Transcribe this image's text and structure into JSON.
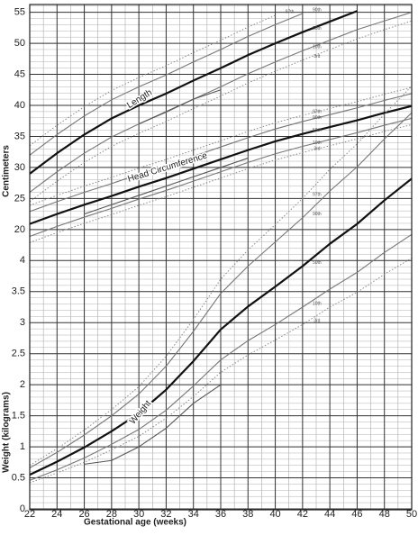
{
  "chart_data": {
    "type": "line",
    "xlabel": "Gestational age (weeks)",
    "ylabel": "Weight (kilograms)",
    "y2label": "Centimeters",
    "annotations": [
      "Length",
      "Head Circumference",
      "Weight"
    ],
    "x": [
      22,
      24,
      26,
      28,
      30,
      32,
      34,
      36,
      38,
      40,
      42,
      44,
      46,
      48,
      50
    ],
    "xlim": [
      22,
      50
    ],
    "xticks": [
      22,
      24,
      26,
      28,
      30,
      32,
      34,
      36,
      38,
      40,
      42,
      44,
      46,
      48,
      50
    ],
    "ylim": [
      0,
      8.125
    ],
    "yticks": [
      0,
      0.5,
      1,
      1.5,
      2,
      2.5,
      3,
      3.5,
      4
    ],
    "y2lim": [
      -25,
      56.25
    ],
    "y2ticks": [
      20,
      25,
      30,
      35,
      40,
      45,
      50,
      55
    ],
    "grid": true,
    "minor_grid": true,
    "series": [
      {
        "name": "97th",
        "axis": "y2",
        "color": "#8a8a8a",
        "style": "dotted",
        "values": [
          33.5,
          36.8,
          39.8,
          42.4,
          44.5,
          46.4,
          48.5,
          50.5,
          52.6,
          54.5,
          null,
          null,
          null,
          null,
          null
        ]
      },
      {
        "name": "90th",
        "axis": "y2",
        "color": "#777777",
        "style": "solid",
        "values": [
          32,
          35.3,
          38.3,
          40.9,
          43.0,
          44.9,
          47.0,
          49.0,
          51.1,
          53.0,
          54.8,
          null,
          null,
          null,
          null
        ]
      },
      {
        "name": "50th",
        "axis": "y2",
        "color": "#111111",
        "style": "bold",
        "values": [
          29,
          32.3,
          35.3,
          37.9,
          40.0,
          41.9,
          44.0,
          46.0,
          48.1,
          50.0,
          51.8,
          53.5,
          55.2,
          null,
          null
        ]
      },
      {
        "name": "10th",
        "axis": "y2",
        "color": "#777777",
        "style": "solid",
        "values": [
          26,
          29.3,
          32.3,
          34.9,
          37.0,
          38.9,
          41.0,
          43.0,
          45.1,
          47.0,
          48.8,
          50.5,
          52.2,
          53.6,
          55.0
        ]
      },
      {
        "name": "3rd",
        "axis": "y2",
        "color": "#8a8a8a",
        "style": "dotted",
        "values": [
          24.5,
          27.8,
          30.8,
          33.4,
          35.5,
          37.4,
          39.5,
          41.5,
          43.6,
          45.5,
          47.3,
          49.0,
          50.7,
          52.2,
          53.6
        ]
      },
      {
        "name": "97th",
        "axis": "y2",
        "color": "#8a8a8a",
        "style": "dotted",
        "values": [
          23.9,
          25.5,
          27.0,
          28.4,
          29.9,
          31.3,
          32.8,
          34.3,
          35.8,
          37.2,
          38.4,
          39.5,
          40.6,
          41.8,
          42.9
        ]
      },
      {
        "name": "90th",
        "axis": "y2",
        "color": "#777777",
        "style": "solid",
        "values": [
          22.9,
          24.5,
          26.0,
          27.4,
          28.9,
          30.3,
          31.8,
          33.3,
          34.8,
          36.2,
          37.4,
          38.5,
          39.6,
          40.8,
          41.9
        ]
      },
      {
        "name": "50th",
        "axis": "y2",
        "color": "#111111",
        "style": "bold",
        "values": [
          20.9,
          22.5,
          24.0,
          25.4,
          26.9,
          28.3,
          29.8,
          31.3,
          32.8,
          34.2,
          35.4,
          36.5,
          37.6,
          38.8,
          39.9
        ]
      },
      {
        "name": "10th",
        "axis": "y2",
        "color": "#777777",
        "style": "solid",
        "values": [
          18.9,
          20.5,
          22.0,
          23.4,
          24.9,
          26.3,
          27.8,
          29.3,
          30.8,
          32.2,
          33.4,
          34.5,
          35.6,
          36.8,
          37.9
        ]
      },
      {
        "name": "3rd",
        "axis": "y2",
        "color": "#8a8a8a",
        "style": "dotted",
        "values": [
          17.9,
          19.5,
          21.0,
          22.4,
          23.9,
          25.3,
          26.8,
          28.3,
          29.8,
          31.2,
          32.4,
          33.5,
          34.6,
          35.8,
          36.9
        ]
      },
      {
        "name": "97th",
        "color": "#8a8a8a",
        "style": "dotted",
        "values": [
          0.7,
          0.97,
          1.27,
          1.6,
          1.97,
          2.46,
          3.05,
          3.7,
          4.17,
          4.58,
          5.0,
          5.47,
          5.88,
          6.36,
          6.81
        ]
      },
      {
        "name": "90th",
        "color": "#777777",
        "style": "solid",
        "values": [
          0.66,
          0.91,
          1.19,
          1.5,
          1.85,
          2.3,
          2.86,
          3.47,
          3.91,
          4.3,
          4.69,
          5.12,
          5.51,
          5.96,
          6.38
        ]
      },
      {
        "name": "50th",
        "color": "#111111",
        "style": "bold",
        "values": [
          0.55,
          0.76,
          0.99,
          1.25,
          1.54,
          1.92,
          2.38,
          2.89,
          3.26,
          3.58,
          3.91,
          4.27,
          4.59,
          4.97,
          5.32
        ]
      },
      {
        "name": "10th",
        "color": "#777777",
        "style": "solid",
        "values": [
          0.46,
          0.63,
          0.82,
          1.04,
          1.28,
          1.59,
          1.98,
          2.4,
          2.71,
          2.97,
          3.25,
          3.54,
          3.81,
          4.13,
          4.42
        ]
      },
      {
        "name": "3rd",
        "color": "#8a8a8a",
        "style": "dotted",
        "values": [
          0.42,
          0.58,
          0.75,
          0.95,
          1.17,
          1.46,
          1.81,
          2.2,
          2.48,
          2.72,
          2.97,
          3.25,
          3.49,
          3.78,
          4.04
        ]
      },
      {
        "axis": "y2",
        "color": "#555555",
        "style": "solid",
        "values": [
          null,
          null,
          null,
          null,
          37.0,
          39.0,
          41.0,
          42.5,
          null,
          null,
          null,
          null,
          null,
          null,
          null
        ]
      },
      {
        "axis": "y2",
        "color": "#555555",
        "style": "solid",
        "values": [
          null,
          null,
          22.5,
          24.0,
          25.5,
          27.0,
          28.5,
          30.0,
          31.5,
          null,
          null,
          null,
          null,
          null,
          null
        ]
      },
      {
        "color": "#555555",
        "style": "solid",
        "values": [
          null,
          null,
          0.72,
          0.78,
          1.0,
          1.3,
          1.7,
          2.0,
          null,
          null,
          null,
          null,
          null,
          null,
          null
        ]
      }
    ]
  }
}
